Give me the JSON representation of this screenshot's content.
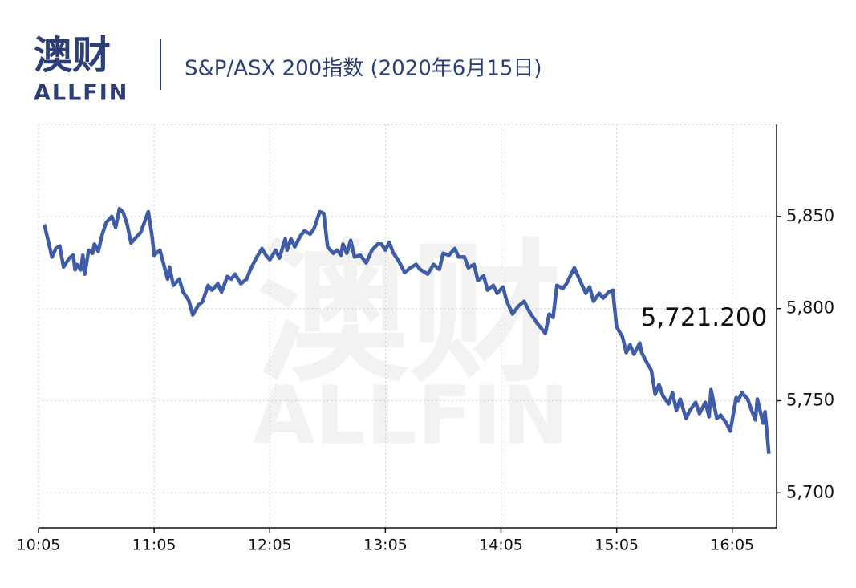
{
  "logo": {
    "cn": "澳财",
    "en": "ALLFIN"
  },
  "chart_data": {
    "type": "line",
    "title": "S&P/ASX 200指数 (2020年6月15日)",
    "watermark": {
      "cn": "澳财",
      "en": "ALLFIN"
    },
    "annotation": "5,721.200",
    "x": [
      "10:08",
      "10:12",
      "10:14",
      "10:16",
      "10:18",
      "10:21",
      "10:23",
      "10:24",
      "10:25",
      "10:27",
      "10:28",
      "10:29",
      "10:31",
      "10:33",
      "10:34",
      "10:36",
      "10:38",
      "10:40",
      "10:43",
      "10:45",
      "10:47",
      "10:49",
      "10:51",
      "10:53",
      "10:56",
      "10:58",
      "11:02",
      "11:04",
      "11:05",
      "11:08",
      "11:10",
      "11:12",
      "11:13",
      "11:15",
      "11:18",
      "11:20",
      "11:23",
      "11:25",
      "11:28",
      "11:30",
      "11:33",
      "11:35",
      "11:38",
      "11:40",
      "11:43",
      "11:45",
      "11:47",
      "11:50",
      "11:53",
      "11:55",
      "11:58",
      "12:01",
      "12:03",
      "12:05",
      "12:08",
      "12:10",
      "12:13",
      "12:14",
      "12:16",
      "12:18",
      "12:21",
      "12:23",
      "12:26",
      "12:28",
      "12:31",
      "12:33",
      "12:35",
      "12:38",
      "12:40",
      "12:42",
      "12:43",
      "12:45",
      "12:47",
      "12:49",
      "12:52",
      "12:55",
      "12:58",
      "13:01",
      "13:03",
      "13:05",
      "13:07",
      "13:09",
      "13:12",
      "13:15",
      "13:18",
      "13:21",
      "13:23",
      "13:27",
      "13:30",
      "13:33",
      "13:35",
      "13:38",
      "13:41",
      "13:43",
      "13:46",
      "13:48",
      "13:51",
      "13:53",
      "13:56",
      "13:58",
      "14:01",
      "14:03",
      "14:06",
      "14:08",
      "14:11",
      "14:14",
      "14:17",
      "14:20",
      "14:24",
      "14:28",
      "14:30",
      "14:32",
      "14:34",
      "14:37",
      "14:39",
      "14:43",
      "14:46",
      "14:49",
      "14:51",
      "14:53",
      "14:56",
      "14:58",
      "15:01",
      "15:03",
      "15:05",
      "15:08",
      "15:10",
      "15:12",
      "15:14",
      "15:17",
      "15:18",
      "15:21",
      "15:23",
      "15:25",
      "15:27",
      "15:29",
      "15:32",
      "15:34",
      "15:36",
      "15:38",
      "15:41",
      "15:43",
      "15:46",
      "15:48",
      "15:51",
      "15:53",
      "15:54",
      "15:57",
      "15:59",
      "16:02",
      "16:04",
      "16:07",
      "16:08",
      "16:10",
      "16:13",
      "16:15",
      "16:17",
      "16:18",
      "16:21",
      "16:22",
      "16:24"
    ],
    "series": [
      {
        "name": "S&P/ASX 200",
        "color": "#3f5ca8",
        "values": [
          5845.7,
          5828,
          5832.6,
          5834,
          5822.6,
          5827.4,
          5829,
          5821,
          5824,
          5821,
          5829,
          5818.7,
          5831.7,
          5830,
          5835,
          5831,
          5840,
          5846.5,
          5850,
          5844,
          5854.3,
          5852,
          5845.7,
          5835.6,
          5839,
          5841.3,
          5852.6,
          5838.7,
          5829,
          5831.7,
          5824,
          5816,
          5822.6,
          5812.6,
          5816,
          5809,
          5804.3,
          5796.5,
          5802,
          5803.5,
          5812.6,
          5810,
          5813.5,
          5809,
          5817.4,
          5816,
          5818.7,
          5813.5,
          5816,
          5821.3,
          5827.4,
          5832.6,
          5829,
          5826.5,
          5831.7,
          5827.4,
          5837.8,
          5831.7,
          5837.8,
          5833.5,
          5839.6,
          5842.2,
          5840.4,
          5843.5,
          5852.6,
          5851.7,
          5833.5,
          5830,
          5831.7,
          5829,
          5835,
          5830,
          5837,
          5828,
          5829,
          5824.8,
          5831.7,
          5835,
          5835,
          5831.7,
          5836,
          5830.4,
          5825.7,
          5819.6,
          5822.2,
          5824,
          5821.3,
          5818.7,
          5824,
          5821.3,
          5830,
          5829,
          5832.6,
          5828,
          5828,
          5822.2,
          5824,
          5815.2,
          5817.8,
          5810,
          5812.6,
          5808.3,
          5811.7,
          5803.9,
          5797,
          5801.3,
          5803.9,
          5797.8,
          5791.7,
          5786.5,
          5797,
          5795.2,
          5812.6,
          5810.9,
          5813.5,
          5822.2,
          5815.2,
          5808.3,
          5811.7,
          5803.9,
          5808.3,
          5805.7,
          5809.1,
          5810,
          5790,
          5784.8,
          5776.1,
          5780.4,
          5775.2,
          5781.3,
          5776.1,
          5770,
          5766.5,
          5753.5,
          5758.7,
          5752.6,
          5748.3,
          5754.3,
          5744.8,
          5750.9,
          5740.4,
          5744.8,
          5749.1,
          5743,
          5749.1,
          5741.3,
          5756,
          5740.4,
          5742.2,
          5737.8,
          5733.5,
          5751.7,
          5750,
          5754.3,
          5750.9,
          5744.8,
          5739.6,
          5750.9,
          5737.8,
          5744,
          5721.2
        ]
      }
    ],
    "xlim": [
      "10:05",
      "16:28"
    ],
    "xticks": [
      "10:05",
      "11:05",
      "12:05",
      "13:05",
      "14:05",
      "15:05",
      "16:05"
    ],
    "ylim": [
      5681,
      5900
    ],
    "yticks": [
      {
        "value": 5700,
        "label": "5,700"
      },
      {
        "value": 5750,
        "label": "5,750"
      },
      {
        "value": 5800,
        "label": "5,800"
      },
      {
        "value": 5850,
        "label": "5,850"
      }
    ],
    "grid": true
  }
}
